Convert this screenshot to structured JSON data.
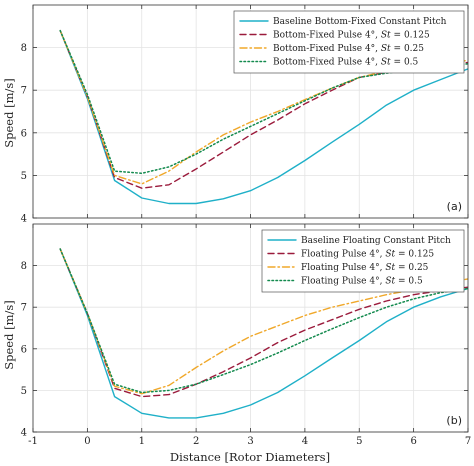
{
  "figure": {
    "xlabel": "Distance [Rotor Diameters]",
    "ylabel": "Speed [m/s]"
  },
  "chart_data": [
    {
      "type": "line",
      "panel_label": "(a)",
      "xlabel": "",
      "ylabel": "Speed [m/s]",
      "xlim": [
        -1,
        7
      ],
      "ylim": [
        4,
        9
      ],
      "x_ticks": [
        -1,
        0,
        1,
        2,
        3,
        4,
        5,
        6,
        7
      ],
      "x_tick_labels": [
        "",
        "",
        "",
        "",
        "",
        "",
        "",
        "",
        ""
      ],
      "y_ticks": [
        4,
        5,
        6,
        7,
        8
      ],
      "y_tick_labels": [
        "4",
        "5",
        "6",
        "7",
        "8"
      ],
      "grid": true,
      "legend_position": "top-right",
      "series": [
        {
          "name": "Baseline Bottom-Fixed Constant Pitch",
          "color": "#1fb0c8",
          "style": "solid",
          "x": [
            -0.5,
            0,
            0.5,
            1,
            1.5,
            2,
            2.5,
            3,
            3.5,
            4,
            4.5,
            5,
            5.5,
            6,
            6.5,
            7
          ],
          "y": [
            8.4,
            6.8,
            4.88,
            4.47,
            4.34,
            4.34,
            4.45,
            4.64,
            4.95,
            5.35,
            5.78,
            6.2,
            6.65,
            7.0,
            7.25,
            7.5
          ]
        },
        {
          "name": "Bottom-Fixed Pulse 4°, St = 0.125",
          "name_parts": [
            "Bottom-Fixed Pulse 4°, ",
            "St",
            " = 0.125"
          ],
          "color": "#9b1b3c",
          "style": "dashed",
          "x": [
            -0.5,
            0,
            0.5,
            1,
            1.5,
            2,
            2.5,
            3,
            3.5,
            4,
            4.5,
            5,
            5.5,
            6,
            6.5,
            7
          ],
          "y": [
            8.4,
            6.85,
            4.95,
            4.7,
            4.78,
            5.15,
            5.55,
            5.95,
            6.3,
            6.68,
            7.0,
            7.3,
            7.42,
            7.5,
            7.58,
            7.65
          ]
        },
        {
          "name": "Bottom-Fixed Pulse 4°, St = 0.25",
          "name_parts": [
            "Bottom-Fixed Pulse 4°, ",
            "St",
            " = 0.25"
          ],
          "color": "#f0a82a",
          "style": "dashdot",
          "x": [
            -0.5,
            0,
            0.5,
            1,
            1.5,
            2,
            2.5,
            3,
            3.5,
            4,
            4.5,
            5,
            5.5,
            6,
            6.5,
            7
          ],
          "y": [
            8.4,
            6.85,
            5.0,
            4.8,
            5.1,
            5.55,
            5.95,
            6.25,
            6.5,
            6.78,
            7.05,
            7.3,
            7.45,
            7.55,
            7.62,
            7.7
          ]
        },
        {
          "name": "Bottom-Fixed Pulse 4°, St = 0.5",
          "name_parts": [
            "Bottom-Fixed Pulse 4°, ",
            "St",
            " = 0.5"
          ],
          "color": "#138a4e",
          "style": "dotted",
          "x": [
            -0.5,
            0,
            0.5,
            1,
            1.5,
            2,
            2.5,
            3,
            3.5,
            4,
            4.5,
            5,
            5.5,
            6,
            6.5,
            7
          ],
          "y": [
            8.4,
            6.9,
            5.1,
            5.05,
            5.2,
            5.5,
            5.85,
            6.15,
            6.45,
            6.75,
            7.05,
            7.3,
            7.4,
            7.48,
            7.55,
            7.62
          ]
        }
      ]
    },
    {
      "type": "line",
      "panel_label": "(b)",
      "xlabel": "Distance [Rotor Diameters]",
      "ylabel": "Speed [m/s]",
      "xlim": [
        -1,
        7
      ],
      "ylim": [
        4,
        9
      ],
      "x_ticks": [
        -1,
        0,
        1,
        2,
        3,
        4,
        5,
        6,
        7
      ],
      "x_tick_labels": [
        "-1",
        "0",
        "1",
        "2",
        "3",
        "4",
        "5",
        "6",
        "7"
      ],
      "y_ticks": [
        4,
        5,
        6,
        7,
        8
      ],
      "y_tick_labels": [
        "4",
        "5",
        "6",
        "7",
        "8"
      ],
      "grid": true,
      "legend_position": "top-right",
      "series": [
        {
          "name": "Baseline Floating Constant Pitch",
          "color": "#1fb0c8",
          "style": "solid",
          "x": [
            -0.5,
            0,
            0.5,
            1,
            1.5,
            2,
            2.5,
            3,
            3.5,
            4,
            4.5,
            5,
            5.5,
            6,
            6.5,
            7
          ],
          "y": [
            8.4,
            6.8,
            4.85,
            4.45,
            4.34,
            4.34,
            4.45,
            4.65,
            4.95,
            5.35,
            5.78,
            6.2,
            6.65,
            7.0,
            7.25,
            7.45
          ]
        },
        {
          "name": "Floating Pulse 4°, St = 0.125",
          "name_parts": [
            "Floating Pulse 4°, ",
            "St",
            " = 0.125"
          ],
          "color": "#9b1b3c",
          "style": "dashed",
          "x": [
            -0.5,
            0,
            0.5,
            1,
            1.5,
            2,
            2.5,
            3,
            3.5,
            4,
            4.5,
            5,
            5.5,
            6,
            6.5,
            7
          ],
          "y": [
            8.4,
            6.85,
            5.05,
            4.85,
            4.9,
            5.15,
            5.45,
            5.78,
            6.15,
            6.45,
            6.7,
            6.95,
            7.15,
            7.3,
            7.4,
            7.48
          ]
        },
        {
          "name": "Floating Pulse 4°, St = 0.25",
          "name_parts": [
            "Floating Pulse 4°, ",
            "St",
            " = 0.25"
          ],
          "color": "#f0a82a",
          "style": "dashdot",
          "x": [
            -0.5,
            0,
            0.5,
            1,
            1.5,
            2,
            2.5,
            3,
            3.5,
            4,
            4.5,
            5,
            5.5,
            6,
            6.5,
            7
          ],
          "y": [
            8.4,
            6.85,
            5.1,
            4.92,
            5.12,
            5.55,
            5.95,
            6.3,
            6.55,
            6.8,
            7.0,
            7.15,
            7.3,
            7.42,
            7.55,
            7.68
          ]
        },
        {
          "name": "Floating Pulse 4°, St = 0.5",
          "name_parts": [
            "Floating Pulse 4°, ",
            "St",
            " = 0.5"
          ],
          "color": "#138a4e",
          "style": "dotted",
          "x": [
            -0.5,
            0,
            0.5,
            1,
            1.5,
            2,
            2.5,
            3,
            3.5,
            4,
            4.5,
            5,
            5.5,
            6,
            6.5,
            7
          ],
          "y": [
            8.4,
            6.85,
            5.15,
            4.95,
            5.0,
            5.15,
            5.38,
            5.62,
            5.9,
            6.2,
            6.48,
            6.75,
            7.0,
            7.2,
            7.35,
            7.45
          ]
        }
      ]
    }
  ]
}
